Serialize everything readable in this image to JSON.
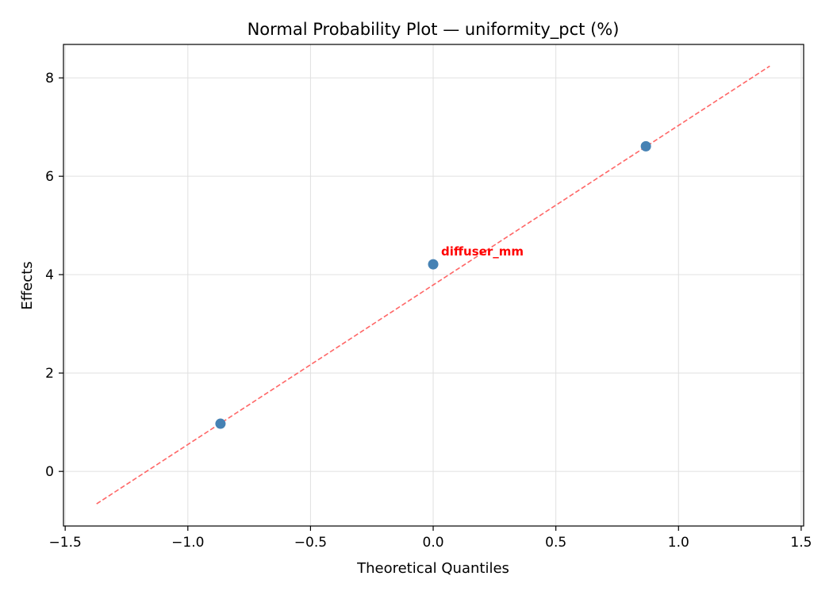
{
  "chart_data": {
    "type": "scatter",
    "title": "Normal Probability Plot — uniformity_pct (%)",
    "xlabel": "Theoretical Quantiles",
    "ylabel": "Effects",
    "xlim": [
      -1.507,
      1.51
    ],
    "ylim": [
      -1.11,
      8.68
    ],
    "xticks": [
      -1.5,
      -1.0,
      -0.5,
      0.0,
      0.5,
      1.0,
      1.5
    ],
    "xtick_labels": [
      "−1.5",
      "−1.0",
      "−0.5",
      "0.0",
      "0.5",
      "1.0",
      "1.5"
    ],
    "yticks": [
      0,
      2,
      4,
      6,
      8
    ],
    "ytick_labels": [
      "0",
      "2",
      "4",
      "6",
      "8"
    ],
    "grid": true,
    "points": [
      {
        "x": -0.867,
        "y": 0.97
      },
      {
        "x": 0.0,
        "y": 4.21
      },
      {
        "x": 0.867,
        "y": 6.61
      }
    ],
    "reference_line": {
      "x": [
        -1.372,
        1.372
      ],
      "y": [
        -0.66,
        8.24
      ],
      "style": "dashed"
    },
    "annotations": [
      {
        "text": "diffuser_mm",
        "x": 0.0,
        "y": 4.21,
        "color": "#ff0000"
      }
    ],
    "colors": {
      "points": "#4682b4",
      "reference_line": "#ff6666",
      "annotation": "#ff0000",
      "grid": "#e0e0e0"
    }
  }
}
